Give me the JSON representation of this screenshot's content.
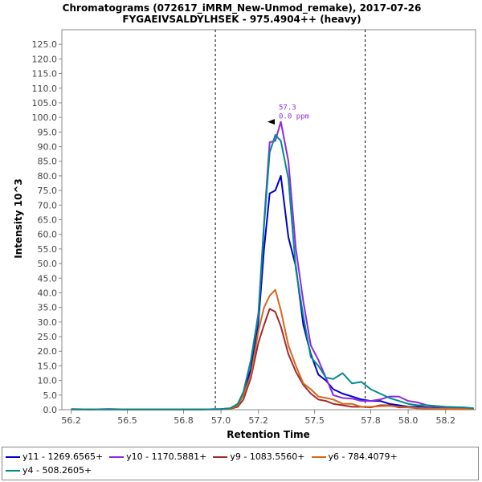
{
  "chart_data": {
    "type": "line",
    "title": "Chromatograms (072617_iMRM_New-Unmod_remake), 2017-07-26",
    "subtitle": "FYGAEIVSALDYLHSEK - 975.4904++ (heavy)",
    "xlabel": "Retention Time",
    "ylabel": "Intensity 10^3",
    "xlim": [
      56.15,
      58.36
    ],
    "ylim": [
      0,
      130
    ],
    "xticks": [
      56.2,
      56.5,
      56.8,
      57.0,
      57.2,
      57.5,
      57.8,
      58.0,
      58.2
    ],
    "xtick_labels": [
      "56.2",
      "56.5",
      "56.8",
      "57.0",
      "57.2",
      "57.5",
      "57.8",
      "58.0",
      "58.2"
    ],
    "yticks": [
      0,
      5,
      10,
      15,
      20,
      25,
      30,
      35,
      40,
      45,
      50,
      55,
      60,
      65,
      70,
      75,
      80,
      85,
      90,
      95,
      100,
      105,
      110,
      115,
      120,
      125
    ],
    "ytick_labels": [
      "0.0",
      "5.0",
      "10.0",
      "15.0",
      "20.0",
      "25.0",
      "30.0",
      "35.0",
      "40.0",
      "45.0",
      "50.0",
      "55.0",
      "60.0",
      "65.0",
      "70.0",
      "75.0",
      "80.0",
      "85.0",
      "90.0",
      "95.0",
      "100.0",
      "105.0",
      "110.0",
      "115.0",
      "120.0",
      "125.0"
    ],
    "grid": false,
    "legend_position": "bottom",
    "integration_boundaries": [
      56.97,
      57.77
    ],
    "annotation": {
      "x": 57.3,
      "y": 98.5,
      "rt_label": "57.3",
      "ppm_label": "0.0 ppm",
      "color": "#8a2be2"
    },
    "series": [
      {
        "name": "y11 - 1269.6565+",
        "color": "#0000cc",
        "x": [
          56.2,
          56.3,
          56.4,
          56.5,
          56.6,
          56.7,
          56.8,
          56.9,
          57.0,
          57.05,
          57.09,
          57.12,
          57.16,
          57.2,
          57.23,
          57.26,
          57.29,
          57.32,
          57.36,
          57.4,
          57.44,
          57.48,
          57.52,
          57.56,
          57.6,
          57.65,
          57.7,
          57.75,
          57.8,
          57.85,
          57.9,
          57.95,
          58.0,
          58.05,
          58.1,
          58.2,
          58.3,
          58.35
        ],
        "values": [
          0.2,
          0.1,
          0.2,
          0.1,
          0.1,
          0.1,
          0.1,
          0.1,
          0.2,
          0.5,
          1.8,
          5.5,
          14,
          30,
          55,
          74,
          75,
          80,
          59,
          49,
          29,
          19,
          12,
          10,
          7,
          5.5,
          4.5,
          3.5,
          3,
          3,
          2,
          1.5,
          1,
          1,
          0.8,
          0.5,
          0.4,
          0.3
        ]
      },
      {
        "name": "y10 - 1170.5881+",
        "color": "#8a2be2",
        "x": [
          56.2,
          56.3,
          56.4,
          56.5,
          56.6,
          56.7,
          56.8,
          56.9,
          57.0,
          57.05,
          57.09,
          57.12,
          57.16,
          57.2,
          57.23,
          57.26,
          57.29,
          57.32,
          57.36,
          57.4,
          57.44,
          57.48,
          57.52,
          57.56,
          57.6,
          57.65,
          57.7,
          57.75,
          57.8,
          57.85,
          57.9,
          57.95,
          58.0,
          58.05,
          58.1,
          58.2,
          58.3,
          58.35
        ],
        "values": [
          0.1,
          0.1,
          0.1,
          0.1,
          0.1,
          0.1,
          0.1,
          0.1,
          0.2,
          0.5,
          2,
          6,
          17,
          33,
          64,
          91.5,
          92,
          98.5,
          85,
          55,
          37,
          22,
          17,
          11,
          5,
          4,
          3.8,
          3,
          3,
          3.5,
          4.5,
          4.5,
          3,
          2.5,
          1.5,
          0.8,
          0.5,
          0.3
        ]
      },
      {
        "name": "y9 - 1083.5560+",
        "color": "#a52a2a",
        "x": [
          56.2,
          56.3,
          56.4,
          56.5,
          56.6,
          56.7,
          56.8,
          56.9,
          57.0,
          57.05,
          57.09,
          57.12,
          57.16,
          57.2,
          57.23,
          57.26,
          57.29,
          57.32,
          57.36,
          57.4,
          57.44,
          57.48,
          57.52,
          57.56,
          57.6,
          57.65,
          57.7,
          57.75,
          57.8,
          57.85,
          57.9,
          57.95,
          58.0,
          58.05,
          58.1,
          58.2,
          58.3,
          58.35
        ],
        "values": [
          0.1,
          0.1,
          0.1,
          0.1,
          0.1,
          0.1,
          0.1,
          0.1,
          0.1,
          0.3,
          1,
          3.5,
          11,
          23,
          29,
          34.5,
          33.5,
          28.5,
          19,
          13,
          8.5,
          5.5,
          3.5,
          3,
          2,
          1.5,
          1,
          1,
          0.8,
          1.5,
          1.5,
          0.8,
          0.8,
          0.5,
          0.4,
          0.3,
          0.2,
          0.2
        ]
      },
      {
        "name": "y6 - 784.4079+",
        "color": "#d2691e",
        "x": [
          56.2,
          56.3,
          56.4,
          56.5,
          56.6,
          56.7,
          56.8,
          56.9,
          57.0,
          57.05,
          57.09,
          57.12,
          57.16,
          57.2,
          57.23,
          57.26,
          57.29,
          57.32,
          57.36,
          57.4,
          57.44,
          57.48,
          57.52,
          57.56,
          57.6,
          57.65,
          57.7,
          57.75,
          57.8,
          57.85,
          57.9,
          57.95,
          58.0,
          58.05,
          58.1,
          58.2,
          58.3,
          58.35
        ],
        "values": [
          0.1,
          0.1,
          0.1,
          0.1,
          0.1,
          0.1,
          0.1,
          0.1,
          0.1,
          0.3,
          1.5,
          5,
          12,
          27,
          35,
          39,
          41,
          34,
          22,
          15,
          9,
          7,
          4.5,
          4,
          3.5,
          2,
          2,
          1,
          1,
          1.2,
          1.3,
          1,
          0.8,
          0.6,
          0.5,
          0.3,
          0.2,
          0.2
        ]
      },
      {
        "name": "y4 - 508.2605+",
        "color": "#008b8b",
        "x": [
          56.2,
          56.3,
          56.4,
          56.5,
          56.6,
          56.7,
          56.8,
          56.9,
          57.0,
          57.05,
          57.09,
          57.12,
          57.16,
          57.2,
          57.23,
          57.26,
          57.29,
          57.32,
          57.36,
          57.4,
          57.44,
          57.48,
          57.52,
          57.56,
          57.6,
          57.65,
          57.7,
          57.75,
          57.8,
          57.85,
          57.9,
          57.95,
          58.0,
          58.05,
          58.1,
          58.2,
          58.3,
          58.35
        ],
        "values": [
          0.1,
          0.1,
          0.1,
          0.1,
          0.1,
          0.1,
          0.1,
          0.1,
          0.2,
          0.5,
          2,
          6,
          17,
          32,
          63,
          88,
          94,
          92,
          79,
          48,
          32,
          18,
          15,
          11,
          10.5,
          12.5,
          9,
          9.5,
          7,
          5.5,
          4,
          3,
          2,
          1.5,
          1.5,
          1,
          0.8,
          0.5
        ]
      }
    ]
  }
}
